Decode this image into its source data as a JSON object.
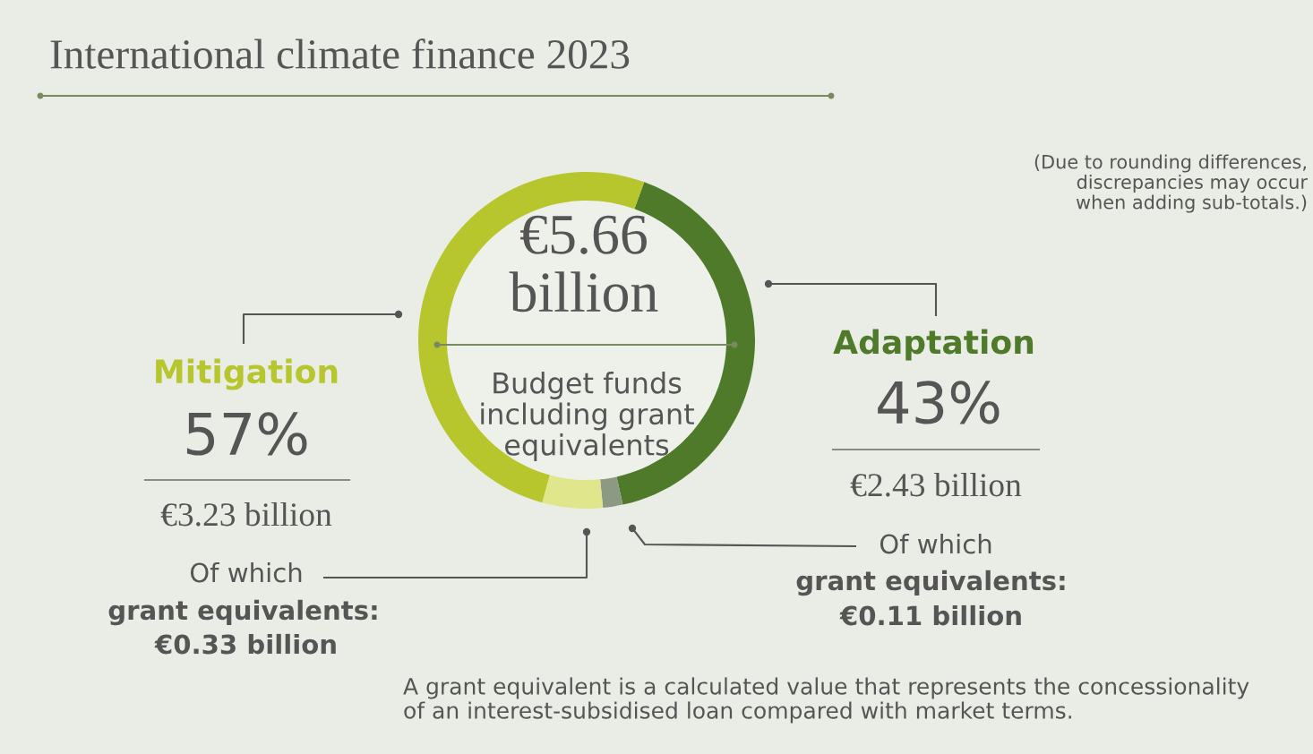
{
  "chart_data": {
    "type": "donut",
    "title": "International climate finance 2023",
    "categories": [
      null,
      null,
      null,
      null
    ],
    "values": [
      41.0,
      1.9,
      5.8,
      51.3
    ],
    "colors": [
      "#4f7a2a",
      "#8c9a84",
      "#dfe68c",
      "#b6c62c"
    ],
    "annotations": [
      "€5.66 billion",
      "Budget funds\nincluding grant\nequivalents",
      "Mitigation",
      "57%",
      "€3.23 billion",
      "Of which",
      "grant equivalents:",
      "€0.33 billion",
      "Adaptation",
      "43%",
      "€2.43 billion",
      "Of which",
      "grant equivalents:",
      "€0.11 billion",
      "(Due to rounding differences,\ndiscrepancies may occur\nwhen adding sub-totals.)",
      "A grant equivalent is a calculated value that represents the concessionality\nof an interest-subsidised loan compared with market terms."
    ]
  }
}
